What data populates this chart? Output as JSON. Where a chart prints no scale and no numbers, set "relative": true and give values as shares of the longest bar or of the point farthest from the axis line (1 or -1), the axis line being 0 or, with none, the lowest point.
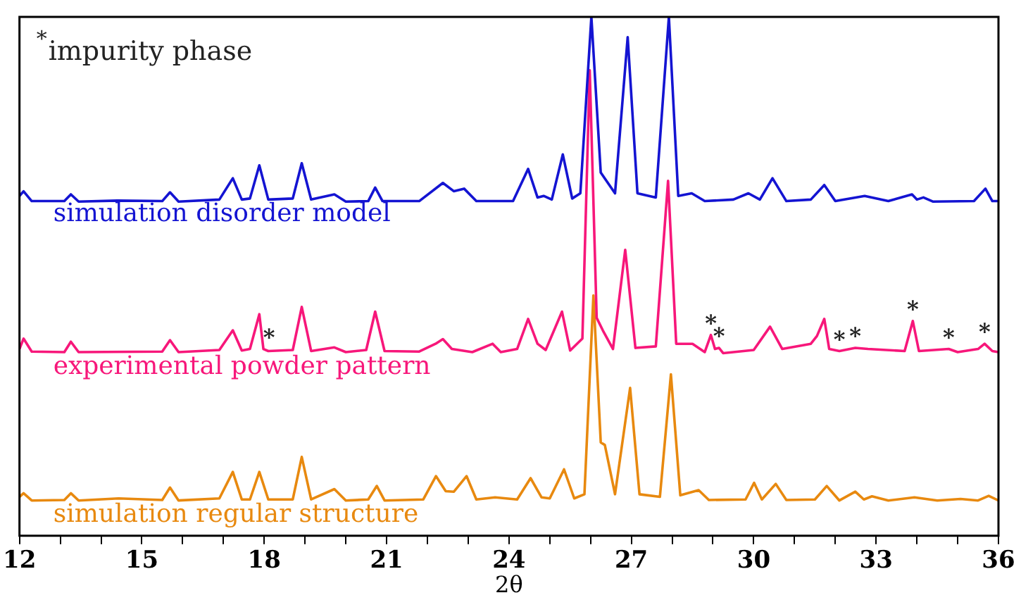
{
  "chart_data": {
    "type": "line",
    "relative": true,
    "xlabel": "2θ",
    "xlim": [
      12,
      36
    ],
    "xticks": [
      12,
      {
        "value": 13,
        "label": null
      },
      {
        "value": 14,
        "label": null
      },
      15,
      {
        "value": 16,
        "label": null
      },
      {
        "value": 17,
        "label": null
      },
      18,
      {
        "value": 19,
        "label": null
      },
      {
        "value": 20,
        "label": null
      },
      21,
      {
        "value": 22,
        "label": null
      },
      {
        "value": 23,
        "label": null
      },
      24,
      {
        "value": 25,
        "label": null
      },
      {
        "value": 26,
        "label": null
      },
      27,
      {
        "value": 28,
        "label": null
      },
      {
        "value": 29,
        "label": null
      },
      30,
      {
        "value": 31,
        "label": null
      },
      {
        "value": 32,
        "label": null
      },
      33,
      {
        "value": 34,
        "label": null
      },
      {
        "value": 35,
        "label": null
      },
      36
    ],
    "grid": false,
    "legend": false,
    "marker": "none",
    "line_style": "solid",
    "annotations": [
      "$^{*}$impurity phase",
      {
        "text": "*",
        "x": 18.12,
        "y": 0.36
      },
      {
        "text": "*",
        "x": 28.95,
        "y": 0.387
      },
      {
        "text": "*",
        "x": 29.15,
        "y": 0.362
      },
      {
        "text": "*",
        "x": 32.1,
        "y": 0.356
      },
      {
        "text": "*",
        "x": 32.49,
        "y": 0.362
      },
      {
        "text": "*",
        "x": 33.9,
        "y": 0.414
      },
      {
        "text": "*",
        "x": 34.78,
        "y": 0.36
      },
      {
        "text": "*",
        "x": 35.66,
        "y": 0.37
      }
    ],
    "series": [
      {
        "name": "simulation disorder model",
        "color": "#1414d2",
        "x": [
          12,
          12.1,
          12.3,
          13.1,
          13.26,
          13.45,
          14.4,
          15.5,
          15.69,
          15.9,
          16.9,
          17.23,
          17.45,
          17.65,
          17.88,
          18.1,
          18.7,
          18.92,
          19.15,
          19.72,
          20,
          20.55,
          20.72,
          20.9,
          21.8,
          22.38,
          22.65,
          22.9,
          23.2,
          24.1,
          24.47,
          24.7,
          24.85,
          25.05,
          25.32,
          25.55,
          25.75,
          26.02,
          26.25,
          26.6,
          26.91,
          27.15,
          27.6,
          27.92,
          28.15,
          28.48,
          28.8,
          29.5,
          29.87,
          30.15,
          30.46,
          30.8,
          31.4,
          31.73,
          32,
          32.72,
          33.3,
          33.88,
          34,
          34.16,
          34.4,
          35.4,
          35.68,
          35.85,
          36
        ],
        "values": [
          0.655,
          0.664,
          0.645,
          0.645,
          0.658,
          0.644,
          0.646,
          0.645,
          0.662,
          0.644,
          0.648,
          0.689,
          0.648,
          0.65,
          0.714,
          0.648,
          0.65,
          0.718,
          0.648,
          0.658,
          0.644,
          0.645,
          0.671,
          0.645,
          0.645,
          0.68,
          0.664,
          0.669,
          0.645,
          0.645,
          0.707,
          0.652,
          0.655,
          0.648,
          0.735,
          0.65,
          0.66,
          1,
          0.7,
          0.66,
          0.961,
          0.66,
          0.652,
          1,
          0.655,
          0.66,
          0.645,
          0.648,
          0.66,
          0.648,
          0.689,
          0.645,
          0.648,
          0.676,
          0.645,
          0.655,
          0.645,
          0.658,
          0.648,
          0.652,
          0.644,
          0.645,
          0.669,
          0.645,
          0.645
        ]
      },
      {
        "name": "experimental powder pattern",
        "color": "#f7177a",
        "x": [
          12,
          12.1,
          12.3,
          13.1,
          13.26,
          13.45,
          15.5,
          15.69,
          15.9,
          16.9,
          17.23,
          17.45,
          17.65,
          17.88,
          17.98,
          18.1,
          18.7,
          18.92,
          19.15,
          19.72,
          20,
          20.5,
          20.72,
          20.95,
          21.8,
          22.2,
          22.38,
          22.6,
          23.1,
          23.6,
          23.8,
          24.2,
          24.47,
          24.7,
          24.9,
          25.3,
          25.5,
          25.8,
          25.98,
          26.15,
          26.3,
          26.55,
          26.85,
          27.1,
          27.6,
          27.9,
          28.1,
          28.5,
          28.8,
          28.95,
          29.05,
          29.15,
          29.25,
          30,
          30.4,
          30.7,
          31.4,
          31.55,
          31.73,
          31.85,
          32.1,
          32.49,
          32.8,
          33.7,
          33.9,
          34.05,
          34.78,
          35,
          35.5,
          35.66,
          35.85,
          36
        ],
        "values": [
          0.36,
          0.38,
          0.355,
          0.354,
          0.374,
          0.354,
          0.355,
          0.377,
          0.354,
          0.358,
          0.396,
          0.357,
          0.36,
          0.427,
          0.36,
          0.356,
          0.358,
          0.441,
          0.356,
          0.363,
          0.354,
          0.358,
          0.432,
          0.356,
          0.355,
          0.37,
          0.379,
          0.36,
          0.354,
          0.37,
          0.354,
          0.36,
          0.418,
          0.37,
          0.358,
          0.432,
          0.357,
          0.38,
          0.897,
          0.42,
          0.396,
          0.36,
          0.551,
          0.362,
          0.365,
          0.684,
          0.37,
          0.37,
          0.354,
          0.387,
          0.36,
          0.362,
          0.352,
          0.358,
          0.403,
          0.36,
          0.37,
          0.385,
          0.418,
          0.36,
          0.356,
          0.362,
          0.36,
          0.356,
          0.414,
          0.356,
          0.36,
          0.354,
          0.36,
          0.37,
          0.356,
          0.354
        ]
      },
      {
        "name": "simulation regular structure",
        "color": "#e8890f",
        "x": [
          12,
          12.1,
          12.3,
          13.1,
          13.26,
          13.45,
          14.43,
          15.5,
          15.69,
          15.9,
          16.9,
          17.23,
          17.45,
          17.65,
          17.88,
          18.1,
          18.7,
          18.92,
          19.15,
          19.72,
          20,
          20.55,
          20.76,
          20.95,
          21.9,
          22.21,
          22.45,
          22.65,
          22.96,
          23.2,
          23.66,
          24.2,
          24.53,
          24.8,
          25,
          25.35,
          25.6,
          25.85,
          26.07,
          26.25,
          26.35,
          26.6,
          26.97,
          27.2,
          27.7,
          27.97,
          28.2,
          28.65,
          28.9,
          29.8,
          30.01,
          30.2,
          30.54,
          30.8,
          31.5,
          31.79,
          32.1,
          32.49,
          32.7,
          32.9,
          33.3,
          33.94,
          34.5,
          35.07,
          35.5,
          35.76,
          36
        ],
        "values": [
          0.075,
          0.082,
          0.068,
          0.069,
          0.082,
          0.068,
          0.072,
          0.069,
          0.093,
          0.068,
          0.072,
          0.123,
          0.07,
          0.07,
          0.123,
          0.07,
          0.07,
          0.152,
          0.07,
          0.09,
          0.068,
          0.07,
          0.096,
          0.068,
          0.07,
          0.115,
          0.086,
          0.085,
          0.115,
          0.07,
          0.074,
          0.07,
          0.111,
          0.074,
          0.072,
          0.128,
          0.072,
          0.08,
          0.463,
          0.18,
          0.175,
          0.08,
          0.285,
          0.08,
          0.075,
          0.311,
          0.078,
          0.088,
          0.069,
          0.07,
          0.102,
          0.07,
          0.1,
          0.069,
          0.07,
          0.096,
          0.068,
          0.085,
          0.07,
          0.076,
          0.068,
          0.074,
          0.068,
          0.071,
          0.068,
          0.077,
          0.068
        ]
      }
    ]
  }
}
